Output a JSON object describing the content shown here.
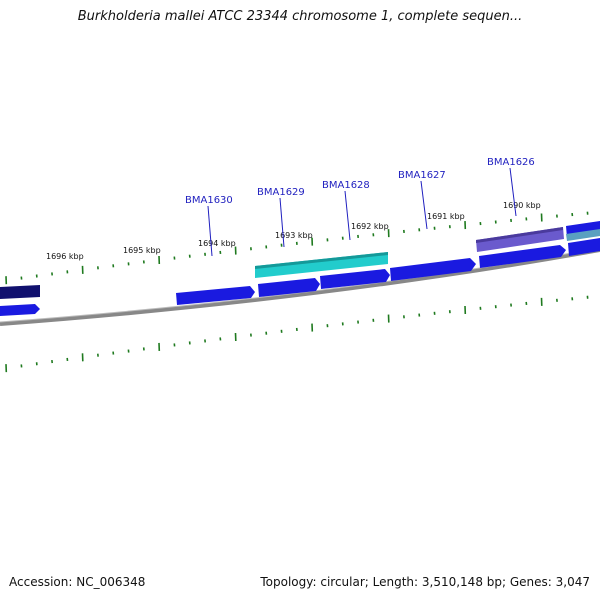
{
  "title": "Burkholderia mallei ATCC 23344 chromosome 1, complete sequen...",
  "accession": "Accession: NC_006348",
  "genome_info": "Topology: circular; Length: 3,510,148 bp; Genes: 3,047",
  "scale_labels": [
    "1696 kbp",
    "1695 kbp",
    "1694 kbp",
    "1693 kbp",
    "1692 kbp",
    "1691 kbp",
    "1690 kbp"
  ],
  "gene_labels": [
    "BMA1630",
    "BMA1629",
    "BMA1628",
    "BMA1627",
    "BMA1626"
  ],
  "colors": {
    "backbone": "#888888",
    "gene_forward": "#1a1ae0",
    "gene_dark": "#10106e",
    "rna_teal": "#22cccc",
    "pseudo_purple": "#6a5acd",
    "tick": "#1f7a1f",
    "label_line": "#1f1fbf"
  }
}
